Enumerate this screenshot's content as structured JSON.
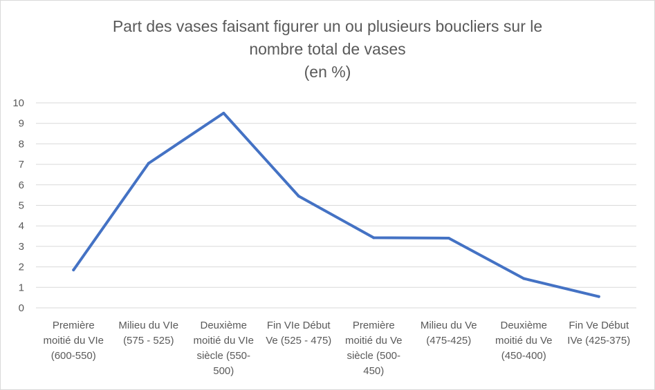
{
  "chart_data": {
    "type": "line",
    "title_lines": [
      "Part des vases faisant figurer un ou plusieurs boucliers sur le",
      "nombre total de vases",
      "(en %)"
    ],
    "categories": [
      [
        "Première",
        "moitié du VIe",
        "(600-550)"
      ],
      [
        "Milieu du VIe",
        "(575 - 525)"
      ],
      [
        "Deuxième",
        "moitié du VIe",
        "siècle (550-",
        "500)"
      ],
      [
        "Fin VIe Début",
        "Ve (525 - 475)"
      ],
      [
        "Première",
        "moitié du Ve",
        "siècle (500-",
        "450)"
      ],
      [
        "Milieu du Ve",
        "(475-425)"
      ],
      [
        "Deuxième",
        "moitié du Ve",
        "(450-400)"
      ],
      [
        "Fin Ve Début",
        "IVe (425-375)"
      ]
    ],
    "values": [
      1.85,
      7.05,
      9.5,
      5.45,
      3.42,
      3.4,
      1.43,
      0.55
    ],
    "ylim": [
      0,
      10
    ],
    "yticks": [
      "0",
      "1",
      "2",
      "3",
      "4",
      "5",
      "6",
      "7",
      "8",
      "9",
      "10"
    ],
    "grid": true,
    "legend": "none",
    "colors": {
      "line": "#4472c4",
      "grid": "#d9d9d9",
      "text": "#595959"
    }
  }
}
